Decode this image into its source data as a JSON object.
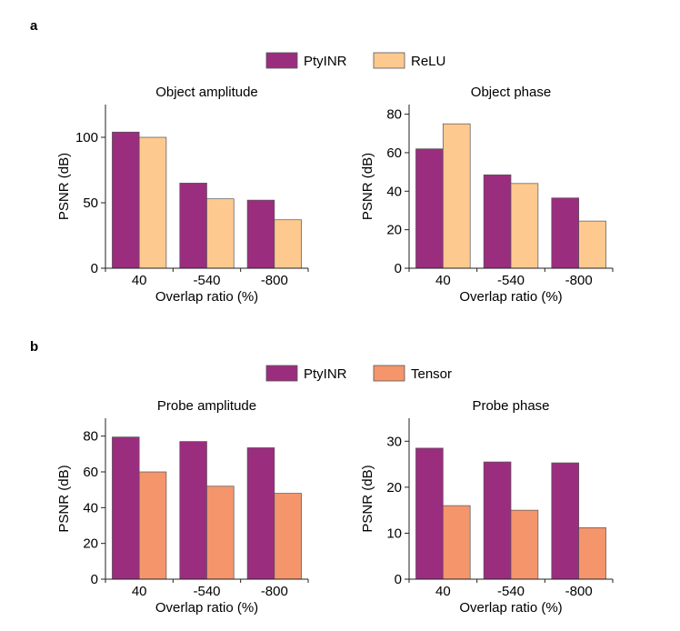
{
  "panels": [
    {
      "letter": "a",
      "legend": [
        {
          "name": "PtyINR",
          "color": "#9b2d7f"
        },
        {
          "name": "ReLU",
          "color": "#fdc98f"
        }
      ]
    },
    {
      "letter": "b",
      "legend": [
        {
          "name": "PtyINR",
          "color": "#9b2d7f"
        },
        {
          "name": "Tensor",
          "color": "#f4956c"
        }
      ]
    }
  ],
  "chart_data": [
    {
      "type": "bar",
      "title": "Object amplitude",
      "xlabel": "Overlap ratio (%)",
      "ylabel": "PSNR (dB)",
      "categories": [
        "40",
        "-540",
        "-800"
      ],
      "ylim": [
        0,
        125
      ],
      "yticks": [
        0,
        50,
        100
      ],
      "series": [
        {
          "name": "PtyINR",
          "color": "#9b2d7f",
          "values": [
            104,
            65,
            52
          ]
        },
        {
          "name": "ReLU",
          "color": "#fdc98f",
          "values": [
            100,
            53,
            37
          ]
        }
      ]
    },
    {
      "type": "bar",
      "title": "Object phase",
      "xlabel": "Overlap ratio (%)",
      "ylabel": "PSNR (dB)",
      "categories": [
        "40",
        "-540",
        "-800"
      ],
      "ylim": [
        0,
        85
      ],
      "yticks": [
        0,
        20,
        40,
        60,
        80
      ],
      "series": [
        {
          "name": "PtyINR",
          "color": "#9b2d7f",
          "values": [
            62,
            48.5,
            36.5
          ]
        },
        {
          "name": "ReLU",
          "color": "#fdc98f",
          "values": [
            75,
            44,
            24.5
          ]
        }
      ]
    },
    {
      "type": "bar",
      "title": "Probe amplitude",
      "xlabel": "Overlap ratio (%)",
      "ylabel": "PSNR (dB)",
      "categories": [
        "40",
        "-540",
        "-800"
      ],
      "ylim": [
        0,
        90
      ],
      "yticks": [
        0,
        20,
        40,
        60,
        80
      ],
      "series": [
        {
          "name": "PtyINR",
          "color": "#9b2d7f",
          "values": [
            79.5,
            77,
            73.5
          ]
        },
        {
          "name": "Tensor",
          "color": "#f4956c",
          "values": [
            60,
            52,
            48
          ]
        }
      ]
    },
    {
      "type": "bar",
      "title": "Probe phase",
      "xlabel": "Overlap ratio (%)",
      "ylabel": "PSNR (dB)",
      "categories": [
        "40",
        "-540",
        "-800"
      ],
      "ylim": [
        0,
        35
      ],
      "yticks": [
        0,
        10,
        20,
        30
      ],
      "series": [
        {
          "name": "PtyINR",
          "color": "#9b2d7f",
          "values": [
            28.5,
            25.5,
            25.3
          ]
        },
        {
          "name": "Tensor",
          "color": "#f4956c",
          "values": [
            16,
            15,
            11.2
          ]
        }
      ]
    }
  ]
}
